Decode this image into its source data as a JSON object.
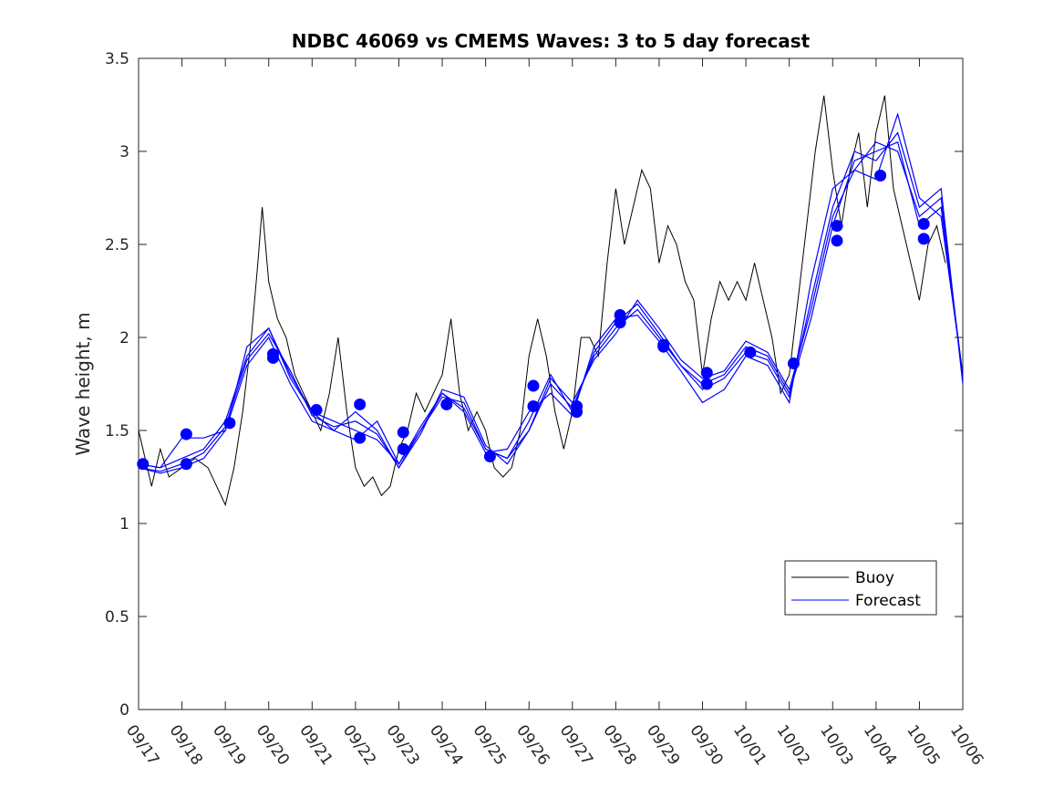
{
  "chart_data": {
    "type": "line",
    "title": "NDBC 46069 vs CMEMS Waves: 3 to 5 day forecast",
    "xlabel": "",
    "ylabel": "Wave height, m",
    "x_tick_labels": [
      "09/17",
      "09/18",
      "09/19",
      "09/20",
      "09/21",
      "09/22",
      "09/23",
      "09/24",
      "09/25",
      "09/26",
      "09/27",
      "09/28",
      "09/29",
      "09/30",
      "10/01",
      "10/02",
      "10/03",
      "10/04",
      "10/05",
      "10/06"
    ],
    "y_ticks": [
      "0",
      "0.5",
      "1",
      "1.5",
      "2",
      "2.5",
      "3",
      "3.5"
    ],
    "ylim": [
      0,
      3.5
    ],
    "xlim_days": [
      0,
      19
    ],
    "grid": false,
    "legend": {
      "placement": "lower-right",
      "entries": [
        "Buoy",
        "Forecast"
      ]
    },
    "colors": {
      "buoy": "#000000",
      "forecast": "#0000ff",
      "markers": "#0000ff"
    },
    "buoy": {
      "x": [
        0,
        0.3,
        0.5,
        0.7,
        1.0,
        1.3,
        1.6,
        1.8,
        2.0,
        2.2,
        2.4,
        2.6,
        2.75,
        2.85,
        3.0,
        3.2,
        3.4,
        3.6,
        3.8,
        4.0,
        4.2,
        4.4,
        4.6,
        4.8,
        5.0,
        5.2,
        5.4,
        5.6,
        5.8,
        6.0,
        6.2,
        6.4,
        6.6,
        6.8,
        7.0,
        7.2,
        7.4,
        7.6,
        7.8,
        8.0,
        8.2,
        8.4,
        8.6,
        8.8,
        9.0,
        9.2,
        9.4,
        9.6,
        9.8,
        10.0,
        10.2,
        10.4,
        10.6,
        10.8,
        11.0,
        11.2,
        11.4,
        11.6,
        11.8,
        12.0,
        12.2,
        12.4,
        12.6,
        12.8,
        13.0,
        13.2,
        13.4,
        13.6,
        13.8,
        14.0,
        14.2,
        14.4,
        14.6,
        14.8,
        15.0,
        15.2,
        15.4,
        15.6,
        15.8,
        16.0,
        16.2,
        16.4,
        16.6,
        16.8,
        17.0,
        17.2,
        17.4,
        17.6,
        17.8,
        18.0,
        18.2,
        18.4,
        18.6
      ],
      "y": [
        1.5,
        1.2,
        1.4,
        1.25,
        1.3,
        1.35,
        1.3,
        1.2,
        1.1,
        1.3,
        1.6,
        2.0,
        2.4,
        2.7,
        2.3,
        2.1,
        2.0,
        1.8,
        1.7,
        1.6,
        1.5,
        1.7,
        2.0,
        1.6,
        1.3,
        1.2,
        1.25,
        1.15,
        1.2,
        1.4,
        1.5,
        1.7,
        1.6,
        1.7,
        1.8,
        2.1,
        1.7,
        1.5,
        1.6,
        1.5,
        1.3,
        1.25,
        1.3,
        1.5,
        1.9,
        2.1,
        1.9,
        1.6,
        1.4,
        1.6,
        2.0,
        2.0,
        1.9,
        2.4,
        2.8,
        2.5,
        2.7,
        2.9,
        2.8,
        2.4,
        2.6,
        2.5,
        2.3,
        2.2,
        1.8,
        2.1,
        2.3,
        2.2,
        2.3,
        2.2,
        2.4,
        2.2,
        2.0,
        1.7,
        1.8,
        2.2,
        2.6,
        3.0,
        3.3,
        2.9,
        2.6,
        2.9,
        3.1,
        2.7,
        3.1,
        3.3,
        2.8,
        2.6,
        2.4,
        2.2,
        2.5,
        2.6,
        2.4
      ]
    },
    "forecast_series": [
      {
        "x": [
          0,
          0.5,
          1.0,
          1.5,
          2.0,
          2.5,
          3.0,
          3.5,
          4.0,
          4.5,
          5.0,
          5.5,
          6.0,
          6.5,
          7.0,
          7.5,
          8.0,
          8.5,
          9.0,
          9.5,
          10.0,
          10.5,
          11.0,
          11.5,
          12.0,
          12.5,
          13.0,
          13.5,
          14.0,
          14.5,
          15.0,
          15.5,
          16.0,
          16.5,
          17.0,
          17.5,
          18.0,
          18.5,
          19.0
        ],
        "y": [
          1.32,
          1.3,
          1.35,
          1.4,
          1.55,
          1.9,
          2.05,
          1.8,
          1.6,
          1.55,
          1.5,
          1.45,
          1.32,
          1.5,
          1.68,
          1.65,
          1.4,
          1.35,
          1.5,
          1.75,
          1.62,
          1.9,
          2.05,
          2.15,
          2.0,
          1.85,
          1.75,
          1.8,
          1.95,
          1.9,
          1.7,
          2.1,
          2.6,
          2.95,
          3.0,
          3.05,
          2.6,
          2.7,
          1.8
        ]
      },
      {
        "x": [
          0,
          0.5,
          1.0,
          1.5,
          2.0,
          2.5,
          3.0,
          3.5,
          4.0,
          4.5,
          5.0,
          5.5,
          6.0,
          6.5,
          7.0,
          7.5,
          8.0,
          8.5,
          9.0,
          9.5,
          10.0,
          10.5,
          11.0,
          11.5,
          12.0,
          12.5,
          13.0,
          13.5,
          14.0,
          14.5,
          15.0,
          15.5,
          16.0,
          16.5,
          17.0,
          17.5,
          18.0,
          18.5,
          19.0
        ],
        "y": [
          1.3,
          1.27,
          1.3,
          1.35,
          1.5,
          1.85,
          2.0,
          1.75,
          1.55,
          1.5,
          1.6,
          1.5,
          1.3,
          1.5,
          1.7,
          1.62,
          1.4,
          1.35,
          1.55,
          1.8,
          1.6,
          1.92,
          2.08,
          2.18,
          2.02,
          1.85,
          1.72,
          1.78,
          1.92,
          1.88,
          1.68,
          2.2,
          2.7,
          3.0,
          2.95,
          3.1,
          2.7,
          2.8,
          1.75
        ]
      },
      {
        "x": [
          0,
          0.5,
          1.0,
          1.5,
          2.0,
          2.5,
          3.0,
          3.5,
          4.0,
          4.5,
          5.0,
          5.5,
          6.0,
          6.5,
          7.0,
          7.5,
          8.0,
          8.5,
          9.0,
          9.5,
          10.0,
          10.5,
          11.0,
          11.5,
          12.0,
          12.5,
          13.0,
          13.5,
          14.0,
          14.5,
          15.0,
          15.5,
          16.0,
          16.5,
          17.0,
          17.5,
          18.0,
          18.5,
          19.0
        ],
        "y": [
          1.32,
          1.3,
          1.46,
          1.46,
          1.5,
          1.95,
          2.05,
          1.78,
          1.6,
          1.5,
          1.45,
          1.55,
          1.32,
          1.52,
          1.7,
          1.6,
          1.38,
          1.4,
          1.6,
          1.7,
          1.58,
          1.95,
          2.1,
          2.12,
          1.98,
          1.82,
          1.65,
          1.72,
          1.9,
          1.85,
          1.65,
          2.3,
          2.8,
          2.9,
          2.85,
          3.2,
          2.75,
          2.65,
          1.8
        ]
      },
      {
        "x": [
          0,
          0.5,
          1.0,
          1.5,
          2.0,
          2.5,
          3.0,
          3.5,
          4.0,
          4.5,
          5.0,
          5.5,
          6.0,
          6.5,
          7.0,
          7.5,
          8.0,
          8.5,
          9.0,
          9.5,
          10.0,
          10.5,
          11.0,
          11.5,
          12.0,
          12.5,
          13.0,
          13.5,
          14.0,
          14.5,
          15.0,
          15.5,
          16.0,
          16.5,
          17.0,
          17.5,
          18.0,
          18.5,
          19.0
        ],
        "y": [
          1.3,
          1.28,
          1.32,
          1.38,
          1.52,
          1.88,
          2.02,
          1.82,
          1.58,
          1.52,
          1.55,
          1.48,
          1.3,
          1.48,
          1.72,
          1.68,
          1.42,
          1.32,
          1.5,
          1.78,
          1.65,
          1.88,
          2.02,
          2.2,
          2.05,
          1.88,
          1.78,
          1.82,
          1.98,
          1.92,
          1.72,
          2.15,
          2.65,
          2.9,
          3.05,
          3.0,
          2.65,
          2.75,
          1.78
        ]
      }
    ],
    "markers": {
      "x": [
        0.1,
        1.1,
        1.1,
        2.1,
        3.1,
        3.1,
        4.1,
        5.1,
        5.1,
        6.1,
        6.1,
        7.1,
        8.1,
        9.1,
        9.1,
        10.1,
        10.1,
        11.1,
        11.1,
        12.1,
        12.1,
        13.1,
        13.1,
        14.1,
        15.1,
        16.1,
        16.1,
        17.1,
        18.1,
        18.1
      ],
      "y": [
        1.32,
        1.48,
        1.32,
        1.54,
        1.91,
        1.89,
        1.61,
        1.64,
        1.46,
        1.49,
        1.4,
        1.64,
        1.36,
        1.74,
        1.63,
        1.63,
        1.6,
        2.12,
        2.08,
        1.96,
        1.95,
        1.81,
        1.75,
        1.92,
        1.86,
        2.6,
        2.52,
        2.87,
        2.61,
        2.53
      ]
    }
  }
}
